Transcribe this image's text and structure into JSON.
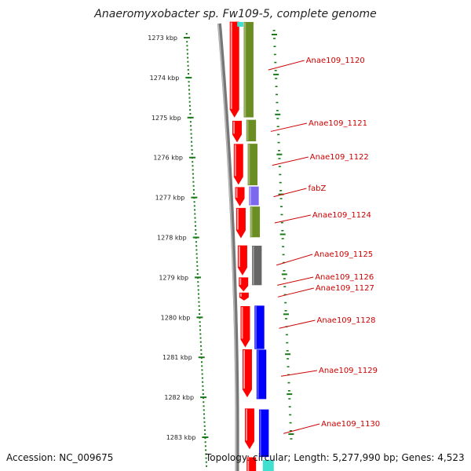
{
  "title": "Anaeromyxobacter sp. Fw109-5, complete genome",
  "ticks": [
    "1273 kbp",
    "1274 kbp",
    "1275 kbp",
    "1276 kbp",
    "1277 kbp",
    "1278 kbp",
    "1279 kbp",
    "1280 kbp",
    "1281 kbp",
    "1282 kbp",
    "1283 kbp"
  ],
  "genes": [
    {
      "label": "Anae109_1120",
      "start_kbp": 1272.6,
      "end_kbp": 1275.0,
      "strand": "+",
      "color": "#6b8e23"
    },
    {
      "label": "Anae109_1121",
      "start_kbp": 1275.05,
      "end_kbp": 1275.6,
      "strand": "+",
      "color": "#6b8e23"
    },
    {
      "label": "Anae109_1122",
      "start_kbp": 1275.65,
      "end_kbp": 1276.7,
      "strand": "+",
      "color": "#6b8e23"
    },
    {
      "label": "fabZ",
      "start_kbp": 1276.72,
      "end_kbp": 1277.2,
      "strand": "+",
      "color": "#7b68ee"
    },
    {
      "label": "Anae109_1124",
      "start_kbp": 1277.22,
      "end_kbp": 1278.0,
      "strand": "+",
      "color": "#6b8e23"
    },
    {
      "label": "Anae109_1125",
      "start_kbp": 1278.2,
      "end_kbp": 1279.2,
      "strand": "+",
      "color": "#666666"
    },
    {
      "label": "Anae109_1126",
      "start_kbp": 1279.0,
      "end_kbp": 1279.35,
      "strand": "-",
      "color": "#ff0000"
    },
    {
      "label": "Anae109_1127",
      "start_kbp": 1279.35,
      "end_kbp": 1279.6,
      "strand": "-",
      "color": "#ff0000"
    },
    {
      "label": "Anae109_1128",
      "start_kbp": 1279.7,
      "end_kbp": 1280.8,
      "strand": "+",
      "color": "#0000ff"
    },
    {
      "label": "Anae109_1129",
      "start_kbp": 1280.8,
      "end_kbp": 1282.05,
      "strand": "+",
      "color": "#0000ff"
    },
    {
      "label": "Anae109_1130",
      "start_kbp": 1282.3,
      "end_kbp": 1283.5,
      "strand": "+",
      "color": "#0000ff"
    }
  ],
  "footer": {
    "accession": "Accession: NC_009675",
    "topology": "Topology: circular; Length: 5,277,990 bp; Genes: 4,523"
  },
  "colors": {
    "forward_cds": "#6b8e23",
    "reverse_cds": "#ff0000",
    "backbone": "#777777",
    "ticks": "#1a7a1a",
    "label": "#cc0000"
  }
}
